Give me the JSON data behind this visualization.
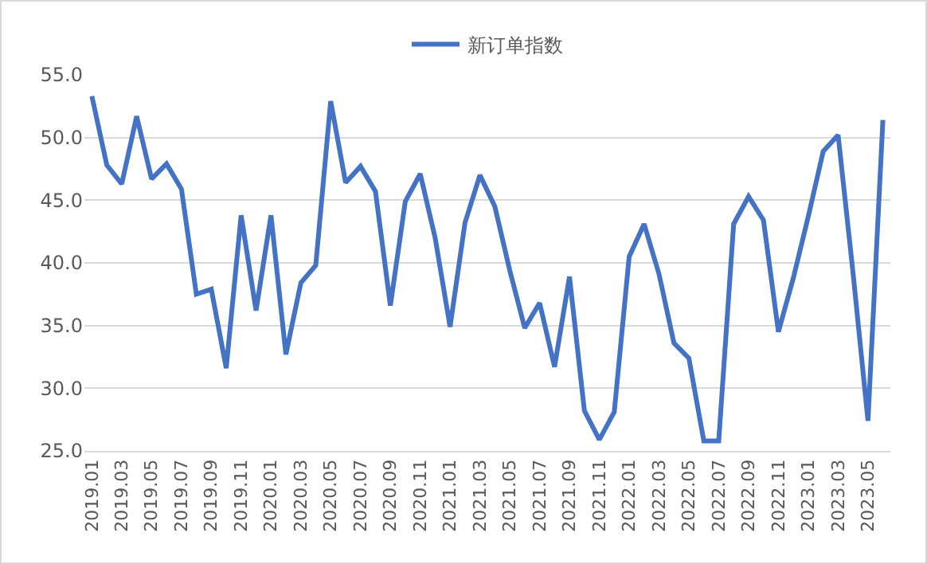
{
  "chart_data": {
    "type": "line",
    "categories": [
      "2019.01",
      null,
      "2019.03",
      null,
      "2019.05",
      null,
      "2019.07",
      null,
      "2019.09",
      null,
      "2019.11",
      null,
      "2020.01",
      null,
      "2020.03",
      null,
      "2020.05",
      null,
      "2020.07",
      null,
      "2020.09",
      null,
      "2020.11",
      null,
      "2021.01",
      null,
      "2021.03",
      null,
      "2021.05",
      null,
      "2021.07",
      null,
      "2021.09",
      null,
      "2021.11",
      null,
      "2022.01",
      null,
      "2022.03",
      null,
      "2022.05",
      null,
      "2022.07",
      null,
      "2022.09",
      null,
      "2022.11",
      null,
      "2023.01",
      null,
      "2023.03",
      null,
      "2023.05",
      null
    ],
    "series": [
      {
        "name": "新订单指数",
        "color": "#4472c4",
        "values": [
          53.3,
          47.8,
          46.3,
          51.7,
          46.7,
          47.9,
          45.9,
          37.5,
          37.9,
          31.6,
          43.8,
          36.2,
          43.8,
          32.7,
          38.4,
          39.8,
          52.9,
          46.4,
          47.7,
          45.7,
          36.6,
          44.9,
          47.1,
          42.0,
          34.9,
          43.2,
          47.0,
          44.5,
          39.4,
          34.8,
          36.8,
          31.7,
          38.9,
          28.2,
          25.9,
          28.1,
          40.5,
          43.1,
          39.1,
          33.6,
          32.4,
          25.8,
          25.8,
          43.1,
          45.3,
          43.4,
          34.5,
          38.8,
          43.7,
          48.9,
          50.2,
          39.2,
          27.4,
          51.4
        ]
      }
    ],
    "ylim": [
      25,
      55
    ],
    "yticks": [
      {
        "value": 25,
        "label": "25.0"
      },
      {
        "value": 30,
        "label": "30.0"
      },
      {
        "value": 35,
        "label": "35.0"
      },
      {
        "value": 40,
        "label": "40.0"
      },
      {
        "value": 45,
        "label": "45.0"
      },
      {
        "value": 50,
        "label": "50.0"
      },
      {
        "value": 55,
        "label": "55.0"
      }
    ],
    "grid": "y",
    "legend": "top",
    "marker": "none",
    "line_style": "solid"
  }
}
